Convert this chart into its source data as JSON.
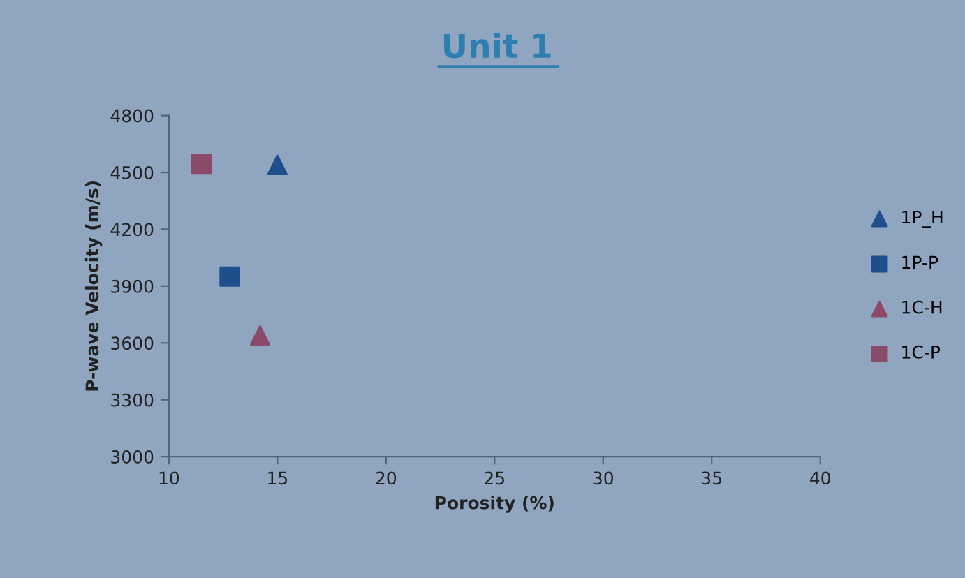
{
  "chart_data": {
    "type": "scatter",
    "title": "Unit 1",
    "xlabel": "Porosity (%)",
    "ylabel": "P-wave Velocity (m/s)",
    "xlim": [
      10,
      40
    ],
    "xticks": [
      10,
      15,
      20,
      25,
      30,
      35,
      40
    ],
    "ylim": [
      3000,
      4800
    ],
    "yticks": [
      3000,
      3300,
      3600,
      3900,
      4200,
      4500,
      4800
    ],
    "grid": false,
    "legend": "right",
    "series": [
      {
        "name": "1P_H",
        "color": "#1f4e8c",
        "marker": "triangle",
        "x": [
          15.0
        ],
        "values": [
          4540
        ]
      },
      {
        "name": "1P-P",
        "color": "#1f4e8c",
        "marker": "square",
        "x": [
          12.8
        ],
        "values": [
          3950
        ]
      },
      {
        "name": "1C-H",
        "color": "#8b4a6a",
        "marker": "triangle",
        "x": [
          14.2
        ],
        "values": [
          3640
        ]
      },
      {
        "name": "1C-P",
        "color": "#8b4a6a",
        "marker": "square",
        "x": [
          11.5
        ],
        "values": [
          4545
        ]
      }
    ]
  }
}
